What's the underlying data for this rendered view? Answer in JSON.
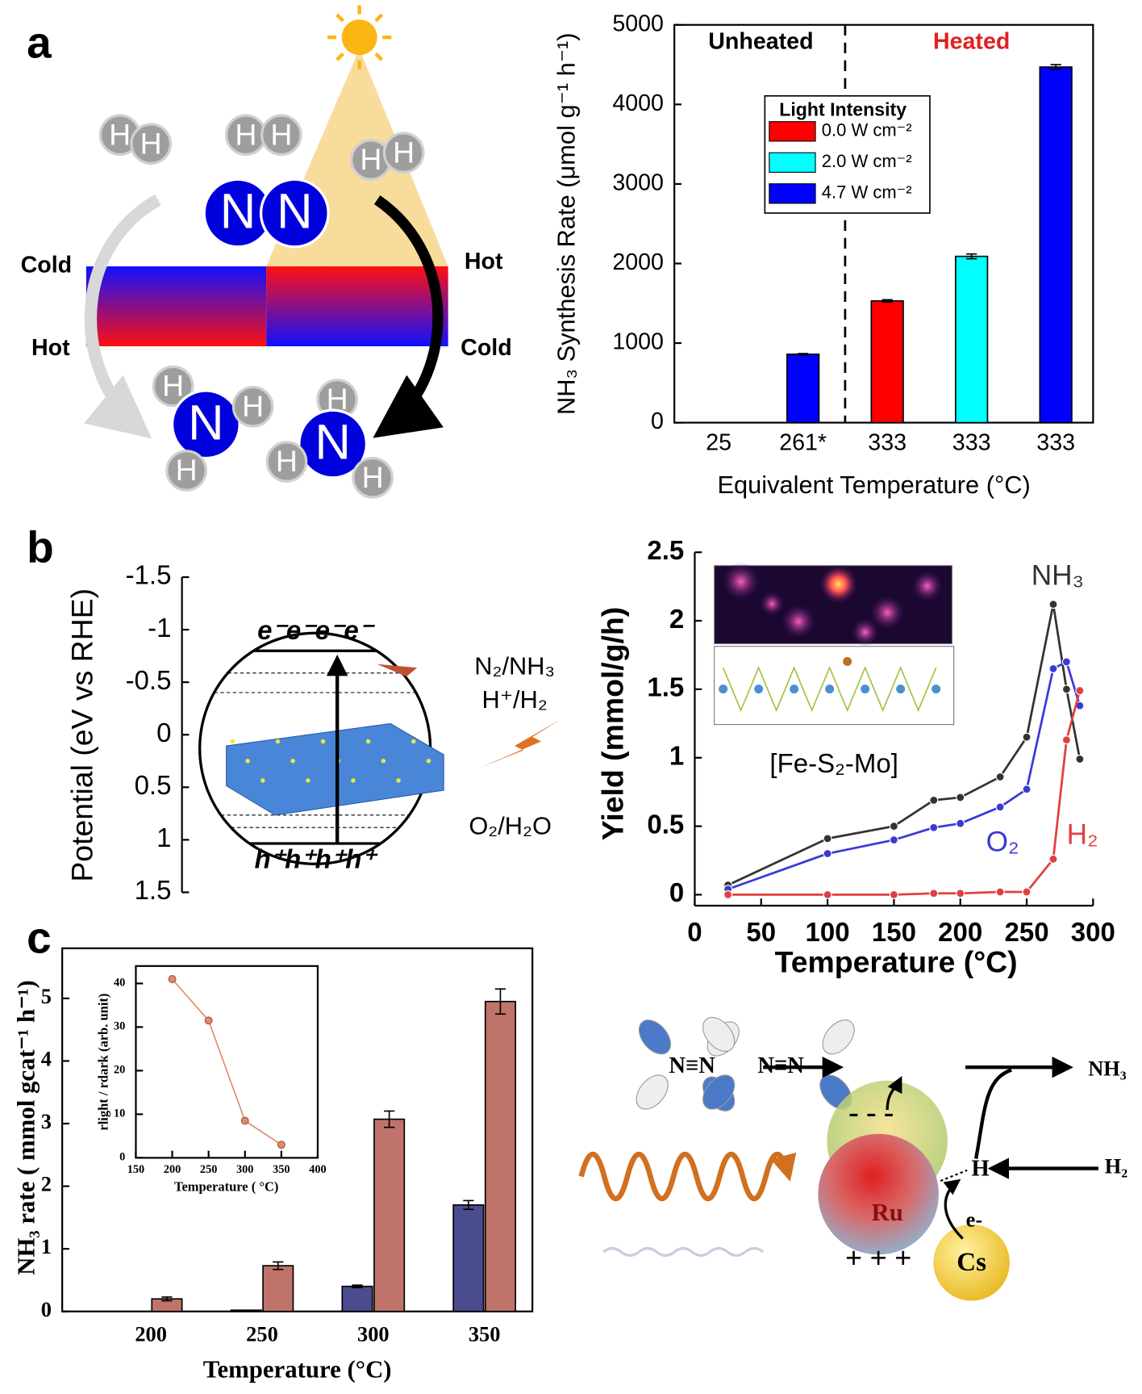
{
  "panel_labels": [
    "a",
    "b",
    "c"
  ],
  "chart_data": [
    {
      "type": "bar",
      "ylabel": "NH₃ Synthesis Rate (μmol g⁻¹ h⁻¹)",
      "xlabel": "Equivalent Temperature (°C)",
      "categories": [
        "25",
        "261*",
        "333",
        "333",
        "333"
      ],
      "series": [
        {
          "name": "0.0 W cm⁻²",
          "color": "#ff0000",
          "values": [
            null,
            null,
            1530,
            null,
            null
          ],
          "errors": [
            null,
            null,
            15,
            null,
            null
          ]
        },
        {
          "name": "2.0 W cm⁻²",
          "color": "#00ffff",
          "values": [
            null,
            null,
            null,
            2090,
            null
          ],
          "errors": [
            null,
            null,
            null,
            30,
            null
          ]
        },
        {
          "name": "4.7 W cm⁻²",
          "color": "#0000ff",
          "values": [
            0,
            860,
            null,
            null,
            4470
          ],
          "errors": [
            null,
            8,
            null,
            null,
            30
          ]
        }
      ],
      "legend_title": "Light Intensity",
      "legend": "upper left",
      "annotations": [
        "Unheated",
        "Heated"
      ],
      "ylim": [
        0,
        5000
      ],
      "yticks": [
        0,
        1000,
        2000,
        3000,
        4000,
        5000
      ]
    },
    {
      "type": "scale",
      "ylabel": "Potential (eV vs RHE)",
      "ylim": [
        1.5,
        -1.5
      ],
      "yticks": [
        -1.5,
        -1,
        -0.5,
        0,
        0.5,
        1,
        1.5
      ],
      "labels": [
        "e⁻e⁻e⁻e⁻",
        "N₂/NH₃",
        "H⁺/H₂",
        "O₂/H₂O",
        "h⁺h⁺h⁺h⁺"
      ]
    },
    {
      "type": "line",
      "ylabel": "Yield (mmol/g/h)",
      "xlabel": "Temperature (°C)",
      "x": [
        25,
        100,
        150,
        180,
        200,
        230,
        250,
        270,
        280,
        290
      ],
      "series": [
        {
          "name": "NH₃",
          "color": "#333333",
          "values": [
            0.07,
            0.41,
            0.5,
            0.69,
            0.71,
            0.86,
            1.15,
            2.12,
            1.5,
            0.99
          ]
        },
        {
          "name": "O₂",
          "color": "#3a3ad6",
          "values": [
            0.04,
            0.3,
            0.4,
            0.49,
            0.52,
            0.64,
            0.77,
            1.65,
            1.7,
            1.38
          ]
        },
        {
          "name": "H₂",
          "color": "#e04040",
          "values": [
            0,
            0,
            0,
            0.01,
            0.01,
            0.02,
            0.02,
            0.26,
            1.13,
            1.49
          ]
        }
      ],
      "legend": "inline",
      "inset_label": "[Fe-S₂-Mo]",
      "xlim": [
        0,
        300
      ],
      "xticks": [
        0,
        50,
        100,
        150,
        200,
        250,
        300
      ],
      "ylim": [
        -0.08,
        2.5
      ],
      "yticks": [
        0,
        0.5,
        1,
        1.5,
        2,
        2.5
      ]
    },
    {
      "type": "bar",
      "ylabel": "NH₃ rate ( mmol gcat⁻¹ h⁻¹)",
      "xlabel": "Temperature (°C)",
      "categories": [
        "200",
        "250",
        "300",
        "350"
      ],
      "series": [
        {
          "color": "#4b4b8f",
          "values": [
            0,
            0.02,
            0.4,
            1.7
          ],
          "errors": [
            null,
            null,
            0.02,
            0.07
          ]
        },
        {
          "color": "#c0736b",
          "values": [
            0.2,
            0.73,
            3.07,
            4.95
          ],
          "errors": [
            0.03,
            0.06,
            0.13,
            0.2
          ]
        }
      ],
      "ylim": [
        0,
        5.8
      ],
      "yticks": [
        0,
        1,
        2,
        3,
        4,
        5
      ]
    },
    {
      "type": "line",
      "ylabel": "rlight / rdark (arb. unit)",
      "xlabel": "Temperature ( °C)",
      "x": [
        200,
        250,
        300,
        350
      ],
      "series": [
        {
          "color": "#e08a6a",
          "values": [
            41,
            31.5,
            8.5,
            3
          ]
        }
      ],
      "xlim": [
        150,
        400
      ],
      "xticks": [
        150,
        200,
        250,
        300,
        350,
        400
      ],
      "ylim": [
        0,
        44
      ],
      "yticks": [
        0,
        10,
        20,
        30,
        40
      ]
    }
  ],
  "diagram_a": {
    "labels": [
      "Cold",
      "Hot",
      "Hot",
      "Cold"
    ],
    "atoms": [
      "H",
      "H",
      "H",
      "H",
      "H",
      "H",
      "N",
      "N",
      "H",
      "N",
      "H",
      "H",
      "H",
      "N",
      "H",
      "H"
    ]
  },
  "diagram_c": {
    "labels": [
      "N≡N",
      "N≡N",
      "NH₃",
      "H₂",
      "H",
      "Ru",
      "e-",
      "Cs",
      "- - -",
      "+ + +"
    ]
  }
}
